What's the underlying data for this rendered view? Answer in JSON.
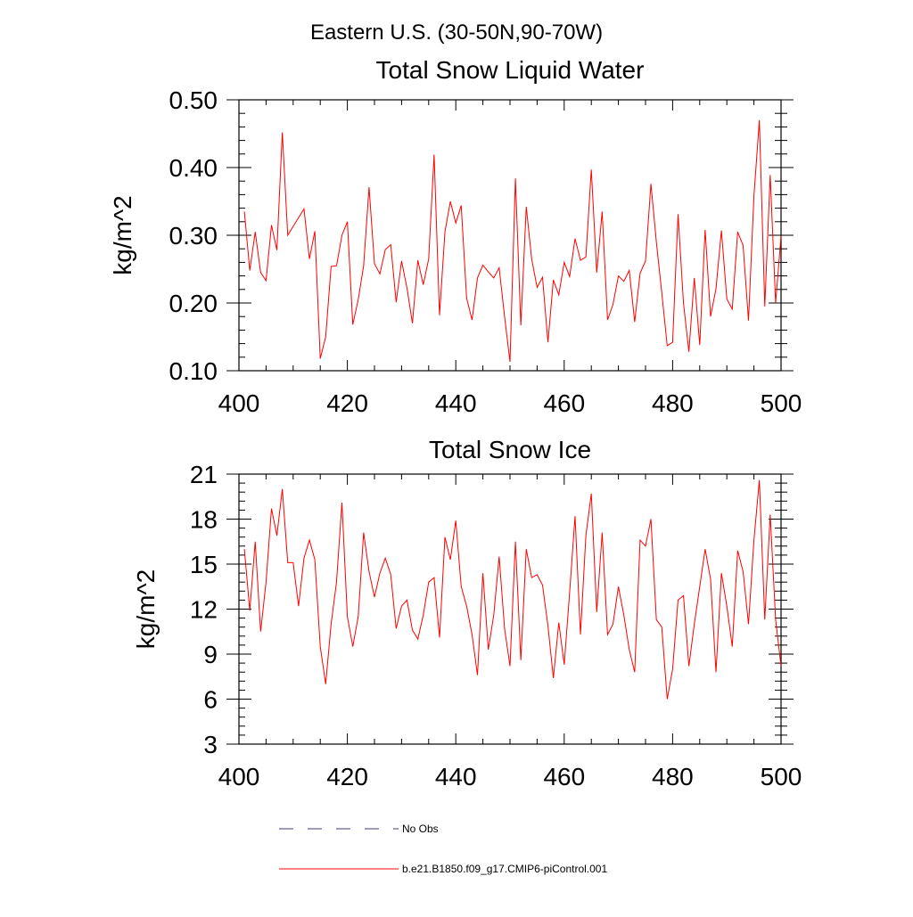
{
  "figure_title": "Eastern U.S. (30-50N,90-70W)",
  "colors": {
    "model_line": "#ff0000",
    "obs_line": "#3a3a7a",
    "axis": "#000000"
  },
  "legend": {
    "position": "bottom-left",
    "entries": [
      {
        "label": "No Obs",
        "style": "dashed",
        "color": "#3a3a7a"
      },
      {
        "label": "b.e21.B1850.f09_g17.CMIP6-piControl.001",
        "style": "solid",
        "color": "#ff0000"
      }
    ]
  },
  "chart_data": [
    {
      "type": "line",
      "title": "Total Snow Liquid Water",
      "xlabel": "",
      "ylabel": "kg/m^2",
      "xlim": [
        400,
        500
      ],
      "ylim": [
        0.1,
        0.5
      ],
      "x_ticks": [
        400,
        420,
        440,
        460,
        480,
        500
      ],
      "y_ticks": [
        0.1,
        0.2,
        0.3,
        0.4,
        0.5
      ],
      "y_tick_labels": [
        "0.10",
        "0.20",
        "0.30",
        "0.40",
        "0.50"
      ],
      "grid": false,
      "series": [
        {
          "name": "b.e21.B1850.f09_g17.CMIP6-piControl.001",
          "x_start": 401,
          "x_step": 1,
          "values": [
            0.335,
            0.248,
            0.305,
            0.245,
            0.233,
            0.315,
            0.278,
            0.452,
            0.3,
            0.313,
            0.326,
            0.339,
            0.265,
            0.306,
            0.118,
            0.15,
            0.254,
            0.255,
            0.3,
            0.32,
            0.168,
            0.205,
            0.255,
            0.371,
            0.258,
            0.243,
            0.279,
            0.286,
            0.201,
            0.262,
            0.222,
            0.17,
            0.263,
            0.227,
            0.265,
            0.419,
            0.182,
            0.305,
            0.35,
            0.318,
            0.344,
            0.207,
            0.175,
            0.237,
            0.256,
            0.246,
            0.237,
            0.252,
            0.18,
            0.113,
            0.384,
            0.167,
            0.342,
            0.265,
            0.223,
            0.238,
            0.142,
            0.234,
            0.212,
            0.26,
            0.239,
            0.295,
            0.263,
            0.268,
            0.397,
            0.245,
            0.335,
            0.175,
            0.198,
            0.24,
            0.232,
            0.248,
            0.172,
            0.244,
            0.262,
            0.376,
            0.29,
            0.215,
            0.137,
            0.142,
            0.331,
            0.2,
            0.128,
            0.237,
            0.138,
            0.308,
            0.18,
            0.221,
            0.307,
            0.206,
            0.191,
            0.305,
            0.285,
            0.174,
            0.358,
            0.47,
            0.195,
            0.389,
            0.2,
            0.299
          ]
        }
      ]
    },
    {
      "type": "line",
      "title": "Total Snow Ice",
      "xlabel": "",
      "ylabel": "kg/m^2",
      "xlim": [
        400,
        500
      ],
      "ylim": [
        3,
        21
      ],
      "x_ticks": [
        400,
        420,
        440,
        460,
        480,
        500
      ],
      "y_ticks": [
        3,
        6,
        9,
        12,
        15,
        18,
        21
      ],
      "y_tick_labels": [
        "3",
        "6",
        "9",
        "12",
        "15",
        "18",
        "21"
      ],
      "grid": false,
      "series": [
        {
          "name": "b.e21.B1850.f09_g17.CMIP6-piControl.001",
          "x_start": 401,
          "x_step": 1,
          "values": [
            16.0,
            11.9,
            16.5,
            10.5,
            13.8,
            18.7,
            16.9,
            20.0,
            15.1,
            15.1,
            12.2,
            15.4,
            16.6,
            15.3,
            9.5,
            7.0,
            11.0,
            13.8,
            19.1,
            11.5,
            9.5,
            11.5,
            17.1,
            14.5,
            12.8,
            14.4,
            15.4,
            14.3,
            10.7,
            12.2,
            12.6,
            10.6,
            10.0,
            11.6,
            13.8,
            14.1,
            10.1,
            16.8,
            15.3,
            17.9,
            13.5,
            12.2,
            10.3,
            7.6,
            14.4,
            9.3,
            11.6,
            15.5,
            10.7,
            8.2,
            16.5,
            8.6,
            16.0,
            14.1,
            14.3,
            13.6,
            10.9,
            7.4,
            11.1,
            8.3,
            13.1,
            18.2,
            10.3,
            16.9,
            19.7,
            11.8,
            17.1,
            10.3,
            11.0,
            13.5,
            11.6,
            9.3,
            7.8,
            16.6,
            16.2,
            18.0,
            11.3,
            10.8,
            6.0,
            8.0,
            12.6,
            12.9,
            8.2,
            11.0,
            13.5,
            16.0,
            14.0,
            7.8,
            14.4,
            12.2,
            9.5,
            15.9,
            14.5,
            11.0,
            16.6,
            20.6,
            11.3,
            18.3,
            11.3,
            8.2
          ]
        }
      ]
    }
  ]
}
